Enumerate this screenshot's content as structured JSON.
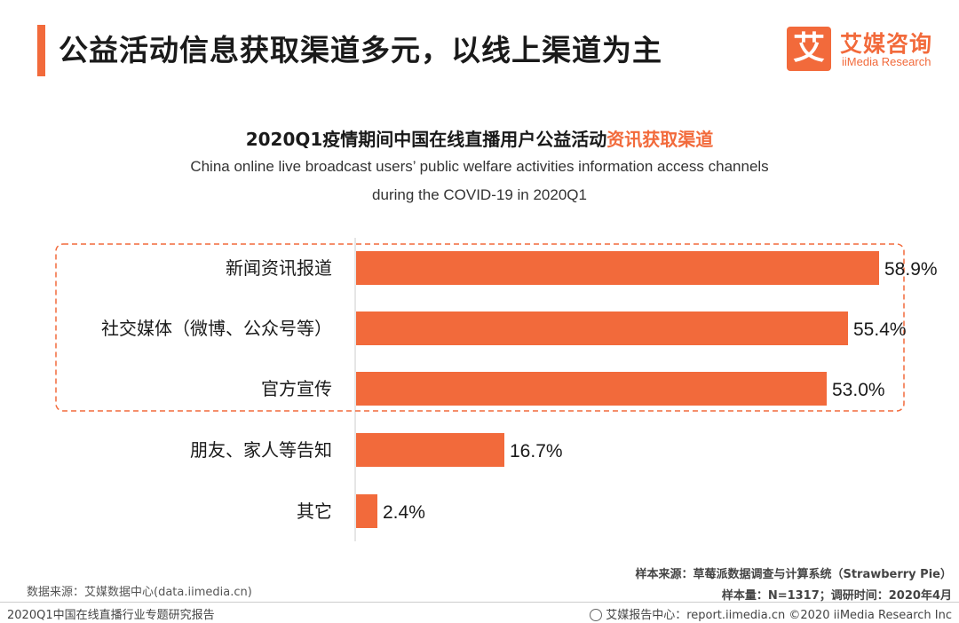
{
  "header": {
    "title": "公益活动信息获取渠道多元，以线上渠道为主"
  },
  "logo": {
    "mark": "艾",
    "cn": "艾媒咨询",
    "en": "iiMedia Research"
  },
  "chart_title": {
    "main": "2020Q1疫情期间中国在线直播用户公益活动",
    "highlight": "资讯获取渠道",
    "en_line1": "China online live broadcast users’ public welfare activities information access channels",
    "en_line2": "during the COVID-19 in 2020Q1"
  },
  "chart_data": {
    "type": "bar",
    "orientation": "horizontal",
    "title": "2020Q1疫情期间中国在线直播用户公益活动资讯获取渠道",
    "categories": [
      "新闻资讯报道",
      "社交媒体（微博、公众号等）",
      "官方宣传",
      "朋友、家人等告知",
      "其它"
    ],
    "values": [
      58.9,
      55.4,
      53.0,
      16.7,
      2.4
    ],
    "labels": [
      "58.9%",
      "55.4%",
      "53.0%",
      "16.7%",
      "2.4%"
    ],
    "unit": "%",
    "xlim": [
      0,
      64
    ],
    "highlighted_categories": [
      "新闻资讯报道",
      "社交媒体（微博、公众号等）",
      "官方宣传"
    ],
    "bar_color": "#f26a3b"
  },
  "footer": {
    "data_source": "数据来源：艾媒数据中心(data.iimedia.cn)",
    "report_name": "2020Q1中国在线直播行业专题研究报告",
    "sample_source": "样本来源：草莓派数据调查与计算系统（Strawberry Pie）",
    "sample_size": "样本量：N=1317；调研时间：2020年4月",
    "report_center": "艾媒报告中心：report.iimedia.cn  ©2020  iiMedia Research  Inc"
  },
  "colors": {
    "accent": "#f26a3b"
  }
}
